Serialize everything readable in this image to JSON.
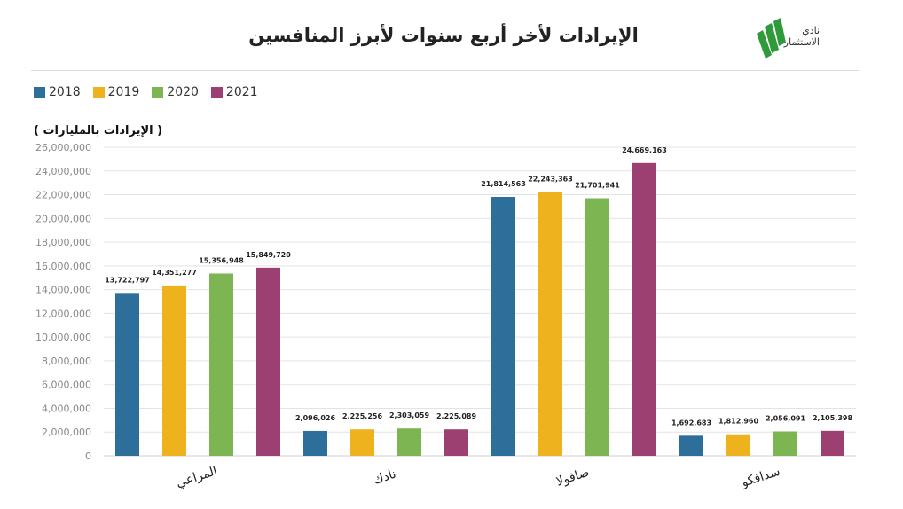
{
  "header": {
    "title": "الإيرادات لأخر أربع سنوات لأبرز المنافسين",
    "logo_text_line1": "نادي",
    "logo_text_line2": "الاستثمار",
    "logo_icon": "green-stripes-logo",
    "logo_color": "#2f9a3a"
  },
  "chart_data": {
    "type": "bar",
    "title": "الإيرادات لأخر أربع سنوات لأبرز المنافسين",
    "ylabel": "( الإيرادات بالمليارات )",
    "xlabel": "",
    "categories": [
      "المراعي",
      "نادك",
      "صافولا",
      "سدافكو"
    ],
    "series": [
      {
        "name": "2018",
        "color": "#2e6e9b",
        "values": [
          13722797,
          2096026,
          21814563,
          1692683
        ],
        "labels": [
          "13,722,797",
          "2,096,026",
          "21,814,563",
          "1,692,683"
        ]
      },
      {
        "name": "2019",
        "color": "#eeb21f",
        "values": [
          14351277,
          2225256,
          22243363,
          1812960
        ],
        "labels": [
          "14,351,277",
          "2,225,256",
          "22,243,363",
          "1,812,960"
        ]
      },
      {
        "name": "2020",
        "color": "#7db553",
        "values": [
          15356948,
          2303059,
          21701941,
          2056091
        ],
        "labels": [
          "15,356,948",
          "2,303,059",
          "21,701,941",
          "2,056,091"
        ]
      },
      {
        "name": "2021",
        "color": "#9b4070",
        "values": [
          15849720,
          2225089,
          24669163,
          2105398
        ],
        "labels": [
          "15,849,720",
          "2,225,089",
          "24,669,163",
          "2,105,398"
        ]
      }
    ],
    "ylim": [
      0,
      26000000
    ],
    "yticks": [
      0,
      2000000,
      4000000,
      6000000,
      8000000,
      10000000,
      12000000,
      14000000,
      16000000,
      18000000,
      20000000,
      22000000,
      24000000,
      26000000
    ],
    "ytick_labels": [
      "0",
      "2,000,000",
      "4,000,000",
      "6,000,000",
      "8,000,000",
      "10,000,000",
      "12,000,000",
      "14,000,000",
      "16,000,000",
      "18,000,000",
      "20,000,000",
      "22,000,000",
      "24,000,000",
      "26,000,000"
    ],
    "grid": true,
    "legend_position": "top-left"
  }
}
